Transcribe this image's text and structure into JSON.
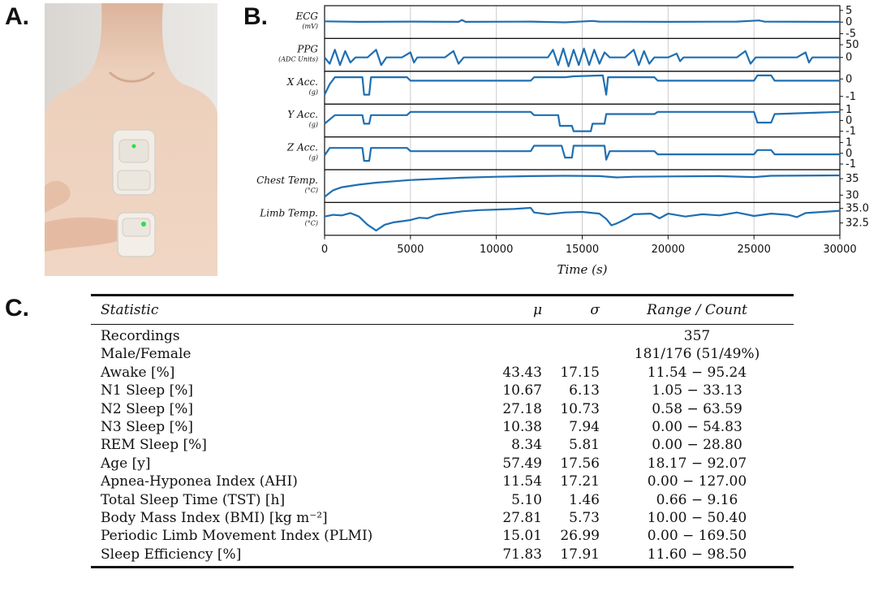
{
  "panels": {
    "a": "A.",
    "b": "B.",
    "c": "C."
  },
  "colors": {
    "signal": "#1f6fb2",
    "grid": "#cccccc",
    "skin": "#e9c9b3",
    "device": "#f1ede6",
    "led": "#29e04a"
  },
  "photo": {
    "subject": "chest-and-limb-wearable-sensors"
  },
  "chart_data": {
    "type": "line",
    "x_axis": {
      "title": "Time (s)",
      "range": [
        0,
        30000
      ],
      "ticks": [
        "0",
        "5000",
        "10000",
        "15000",
        "20000",
        "25000",
        "30000"
      ]
    },
    "grid": "vertical",
    "series": [
      {
        "name": "ECG",
        "unit": "(mV)",
        "ticks": [
          "5",
          "0",
          "-5"
        ],
        "range": [
          -6,
          6
        ],
        "points": [
          [
            0,
            0.3
          ],
          [
            2000,
            0.1
          ],
          [
            5000,
            0.2
          ],
          [
            7800,
            0.1
          ],
          [
            8000,
            0.9
          ],
          [
            8200,
            0.1
          ],
          [
            12000,
            0.2
          ],
          [
            14000,
            -0.1
          ],
          [
            15600,
            0.5
          ],
          [
            16000,
            0.2
          ],
          [
            20000,
            0.1
          ],
          [
            24000,
            0.2
          ],
          [
            25300,
            0.7
          ],
          [
            25600,
            0.2
          ],
          [
            30000,
            0.1
          ]
        ]
      },
      {
        "name": "PPG",
        "unit": "(ADC Units)",
        "ticks": [
          "50",
          "0"
        ],
        "range": [
          -45,
          65
        ],
        "points": [
          [
            0,
            0
          ],
          [
            300,
            -25
          ],
          [
            600,
            30
          ],
          [
            900,
            -30
          ],
          [
            1200,
            25
          ],
          [
            1500,
            -20
          ],
          [
            1800,
            0
          ],
          [
            2500,
            0
          ],
          [
            3000,
            30
          ],
          [
            3300,
            -30
          ],
          [
            3600,
            0
          ],
          [
            4500,
            0
          ],
          [
            5000,
            20
          ],
          [
            5200,
            -20
          ],
          [
            5400,
            0
          ],
          [
            7000,
            0
          ],
          [
            7500,
            25
          ],
          [
            7800,
            -25
          ],
          [
            8100,
            0
          ],
          [
            9000,
            0
          ],
          [
            13000,
            0
          ],
          [
            13300,
            30
          ],
          [
            13600,
            -30
          ],
          [
            13900,
            35
          ],
          [
            14200,
            -35
          ],
          [
            14500,
            30
          ],
          [
            14800,
            -30
          ],
          [
            15100,
            35
          ],
          [
            15400,
            -30
          ],
          [
            15700,
            30
          ],
          [
            16000,
            -25
          ],
          [
            16300,
            20
          ],
          [
            16600,
            0
          ],
          [
            17500,
            0
          ],
          [
            18000,
            30
          ],
          [
            18300,
            -30
          ],
          [
            18600,
            25
          ],
          [
            18900,
            -25
          ],
          [
            19200,
            0
          ],
          [
            20000,
            0
          ],
          [
            20500,
            15
          ],
          [
            20700,
            -15
          ],
          [
            20900,
            0
          ],
          [
            24000,
            0
          ],
          [
            24500,
            25
          ],
          [
            24800,
            -25
          ],
          [
            25100,
            0
          ],
          [
            27500,
            0
          ],
          [
            28000,
            20
          ],
          [
            28200,
            -20
          ],
          [
            28400,
            0
          ],
          [
            30000,
            0
          ]
        ]
      },
      {
        "name": "X Acc.",
        "unit": "(g)",
        "ticks": [
          "0",
          "-1"
        ],
        "range": [
          -1.3,
          0.3
        ],
        "points": [
          [
            0,
            -0.9
          ],
          [
            300,
            -0.3
          ],
          [
            600,
            0.1
          ],
          [
            2200,
            0.1
          ],
          [
            2300,
            -0.9
          ],
          [
            2600,
            -0.9
          ],
          [
            2700,
            0.1
          ],
          [
            4800,
            0.1
          ],
          [
            5000,
            -0.1
          ],
          [
            12000,
            -0.1
          ],
          [
            12200,
            0.1
          ],
          [
            14000,
            0.1
          ],
          [
            14500,
            0.15
          ],
          [
            16200,
            0.2
          ],
          [
            16400,
            -0.9
          ],
          [
            16500,
            0.1
          ],
          [
            19200,
            0.1
          ],
          [
            19400,
            -0.1
          ],
          [
            25000,
            -0.1
          ],
          [
            25200,
            0.2
          ],
          [
            26000,
            0.2
          ],
          [
            26200,
            -0.1
          ],
          [
            30000,
            -0.1
          ]
        ]
      },
      {
        "name": "Y Acc.",
        "unit": "(g)",
        "ticks": [
          "1",
          "0",
          "-1"
        ],
        "range": [
          -1.3,
          1.3
        ],
        "points": [
          [
            0,
            -0.3
          ],
          [
            600,
            0.5
          ],
          [
            2200,
            0.5
          ],
          [
            2300,
            -0.3
          ],
          [
            2600,
            -0.3
          ],
          [
            2700,
            0.5
          ],
          [
            4800,
            0.5
          ],
          [
            5000,
            0.8
          ],
          [
            12000,
            0.8
          ],
          [
            12200,
            0.5
          ],
          [
            13600,
            0.5
          ],
          [
            13700,
            -0.5
          ],
          [
            14400,
            -0.5
          ],
          [
            14500,
            -1.0
          ],
          [
            15500,
            -1.0
          ],
          [
            15600,
            -0.3
          ],
          [
            16300,
            -0.3
          ],
          [
            16400,
            0.6
          ],
          [
            19200,
            0.6
          ],
          [
            19400,
            0.8
          ],
          [
            25000,
            0.8
          ],
          [
            25200,
            -0.2
          ],
          [
            26000,
            -0.2
          ],
          [
            26200,
            0.6
          ],
          [
            30000,
            0.8
          ]
        ]
      },
      {
        "name": "Z Acc.",
        "unit": "(g)",
        "ticks": [
          "1",
          "0",
          "-1"
        ],
        "range": [
          -1.3,
          1.3
        ],
        "points": [
          [
            0,
            -0.2
          ],
          [
            300,
            0.5
          ],
          [
            2200,
            0.5
          ],
          [
            2300,
            -0.7
          ],
          [
            2600,
            -0.7
          ],
          [
            2700,
            0.5
          ],
          [
            4800,
            0.5
          ],
          [
            5000,
            0.2
          ],
          [
            12000,
            0.2
          ],
          [
            12200,
            0.7
          ],
          [
            13800,
            0.7
          ],
          [
            14000,
            -0.4
          ],
          [
            14400,
            -0.4
          ],
          [
            14500,
            0.7
          ],
          [
            16300,
            0.7
          ],
          [
            16400,
            -0.6
          ],
          [
            16600,
            0.2
          ],
          [
            19200,
            0.2
          ],
          [
            19400,
            -0.1
          ],
          [
            25000,
            -0.1
          ],
          [
            25200,
            0.3
          ],
          [
            26000,
            0.3
          ],
          [
            26200,
            -0.1
          ],
          [
            30000,
            -0.1
          ]
        ]
      },
      {
        "name": "Chest Temp.",
        "unit": "(°C)",
        "ticks": [
          "35",
          "30"
        ],
        "range": [
          28.5,
          37
        ],
        "points": [
          [
            0,
            29.5
          ],
          [
            500,
            31.5
          ],
          [
            1000,
            32.4
          ],
          [
            2000,
            33.2
          ],
          [
            3000,
            33.8
          ],
          [
            5000,
            34.6
          ],
          [
            8000,
            35.3
          ],
          [
            10000,
            35.6
          ],
          [
            12000,
            35.8
          ],
          [
            14000,
            35.9
          ],
          [
            16000,
            35.8
          ],
          [
            17000,
            35.4
          ],
          [
            18000,
            35.6
          ],
          [
            20000,
            35.7
          ],
          [
            23000,
            35.8
          ],
          [
            25000,
            35.5
          ],
          [
            26000,
            35.9
          ],
          [
            30000,
            36.0
          ]
        ]
      },
      {
        "name": "Limb Temp.",
        "unit": "(°C)",
        "ticks": [
          "35.0",
          "32.5"
        ],
        "range": [
          30.8,
          35.6
        ],
        "points": [
          [
            0,
            33.6
          ],
          [
            500,
            33.9
          ],
          [
            1000,
            33.8
          ],
          [
            1500,
            34.2
          ],
          [
            2000,
            33.6
          ],
          [
            2500,
            32.2
          ],
          [
            2800,
            31.6
          ],
          [
            3000,
            31.2
          ],
          [
            3500,
            32.2
          ],
          [
            4000,
            32.6
          ],
          [
            4500,
            32.8
          ],
          [
            5000,
            33.0
          ],
          [
            5500,
            33.4
          ],
          [
            6000,
            33.3
          ],
          [
            6500,
            33.9
          ],
          [
            7000,
            34.1
          ],
          [
            8000,
            34.5
          ],
          [
            9000,
            34.7
          ],
          [
            10000,
            34.8
          ],
          [
            11000,
            34.9
          ],
          [
            12000,
            35.1
          ],
          [
            12200,
            34.3
          ],
          [
            13000,
            34.0
          ],
          [
            14000,
            34.3
          ],
          [
            15000,
            34.4
          ],
          [
            16000,
            34.1
          ],
          [
            16400,
            33.2
          ],
          [
            16700,
            32.1
          ],
          [
            17000,
            32.4
          ],
          [
            17500,
            33.1
          ],
          [
            18000,
            34.0
          ],
          [
            19000,
            34.1
          ],
          [
            19500,
            33.3
          ],
          [
            20000,
            34.1
          ],
          [
            21000,
            33.6
          ],
          [
            22000,
            34.0
          ],
          [
            23000,
            33.8
          ],
          [
            24000,
            34.3
          ],
          [
            25000,
            33.7
          ],
          [
            26000,
            34.1
          ],
          [
            27000,
            33.9
          ],
          [
            27500,
            33.5
          ],
          [
            28000,
            34.2
          ],
          [
            29000,
            34.4
          ],
          [
            30000,
            34.6
          ]
        ]
      }
    ]
  },
  "table": {
    "headers": {
      "statistic": "Statistic",
      "mu": "μ",
      "sigma": "σ",
      "range": "Range / Count"
    },
    "rows": [
      {
        "statistic": "Recordings",
        "mu": "",
        "sigma": "",
        "range": "357"
      },
      {
        "statistic": "Male/Female",
        "mu": "",
        "sigma": "",
        "range": "181/176 (51/49%)"
      },
      {
        "statistic": "Awake [%]",
        "mu": "43.43",
        "sigma": "17.15",
        "range": "11.54 − 95.24"
      },
      {
        "statistic": "N1 Sleep [%]",
        "mu": "10.67",
        "sigma": "6.13",
        "range": "1.05 − 33.13"
      },
      {
        "statistic": "N2 Sleep [%]",
        "mu": "27.18",
        "sigma": "10.73",
        "range": "0.58 − 63.59"
      },
      {
        "statistic": "N3 Sleep [%]",
        "mu": "10.38",
        "sigma": "7.94",
        "range": "0.00 − 54.83"
      },
      {
        "statistic": "REM Sleep [%]",
        "mu": "8.34",
        "sigma": "5.81",
        "range": "0.00 − 28.80"
      },
      {
        "statistic": "Age [y]",
        "mu": "57.49",
        "sigma": "17.56",
        "range": "18.17 − 92.07"
      },
      {
        "statistic": "Apnea-Hyponea Index (AHI)",
        "mu": "11.54",
        "sigma": "17.21",
        "range": "0.00 − 127.00"
      },
      {
        "statistic": "Total Sleep Time (TST) [h]",
        "mu": "5.10",
        "sigma": "1.46",
        "range": "0.66 − 9.16"
      },
      {
        "statistic": "Body Mass Index (BMI) [kg m⁻²]",
        "mu": "27.81",
        "sigma": "5.73",
        "range": "10.00 − 50.40"
      },
      {
        "statistic": "Periodic Limb Movement Index (PLMI)",
        "mu": "15.01",
        "sigma": "26.99",
        "range": "0.00 − 169.50"
      },
      {
        "statistic": "Sleep Efficiency [%]",
        "mu": "71.83",
        "sigma": "17.91",
        "range": "11.60 − 98.50"
      }
    ]
  }
}
